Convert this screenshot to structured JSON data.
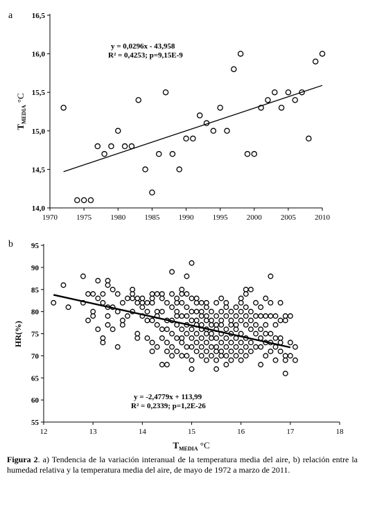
{
  "caption": {
    "label": "Figura 2",
    "text": ". a) Tendencia de la variación interanual de la temperatura media del aire, b) relación entre la humedad relativa y la temperatura media del aire, de mayo de 1972 a marzo de 2011."
  },
  "chart_data": [
    {
      "panel_label": "a",
      "type": "scatter",
      "title": "",
      "xlabel": "",
      "ylabel_main": "T",
      "ylabel_sub": "MEDIA",
      "ylabel_unit": " °C",
      "xlim": [
        1970,
        2010
      ],
      "ylim": [
        14.0,
        16.5
      ],
      "xticks": [
        "1970",
        "1975",
        "1980",
        "1985",
        "1990",
        "1995",
        "2000",
        "2005",
        "2010"
      ],
      "yticks": [
        "14,0",
        "14,5",
        "15,0",
        "15,5",
        "16,0",
        "16,5"
      ],
      "grid": false,
      "equation": "y = 0,0296x - 43,958",
      "r2": "R² = 0,4253; p=9,15E-9",
      "trendline": {
        "x": [
          1972,
          2010
        ],
        "y": [
          14.47,
          15.59
        ]
      },
      "points": [
        [
          1972,
          15.3
        ],
        [
          1974,
          14.1
        ],
        [
          1975,
          14.1
        ],
        [
          1976,
          14.1
        ],
        [
          1977,
          14.8
        ],
        [
          1978,
          14.7
        ],
        [
          1979,
          14.8
        ],
        [
          1980,
          15.0
        ],
        [
          1981,
          14.8
        ],
        [
          1982,
          14.8
        ],
        [
          1983,
          15.4
        ],
        [
          1984,
          14.5
        ],
        [
          1985,
          14.2
        ],
        [
          1986,
          14.7
        ],
        [
          1987,
          15.5
        ],
        [
          1988,
          14.7
        ],
        [
          1989,
          14.5
        ],
        [
          1990,
          14.9
        ],
        [
          1991,
          14.9
        ],
        [
          1992,
          15.2
        ],
        [
          1993,
          15.1
        ],
        [
          1994,
          15.0
        ],
        [
          1995,
          15.3
        ],
        [
          1996,
          15.0
        ],
        [
          1997,
          15.8
        ],
        [
          1998,
          16.0
        ],
        [
          1999,
          14.7
        ],
        [
          2000,
          14.7
        ],
        [
          2001,
          15.3
        ],
        [
          2002,
          15.4
        ],
        [
          2003,
          15.5
        ],
        [
          2004,
          15.3
        ],
        [
          2005,
          15.5
        ],
        [
          2006,
          15.4
        ],
        [
          2007,
          15.5
        ],
        [
          2008,
          14.9
        ],
        [
          2009,
          15.9
        ],
        [
          2010,
          16.0
        ]
      ]
    },
    {
      "panel_label": "b",
      "type": "scatter",
      "title": "",
      "xlabel_main": "T",
      "xlabel_sub": "MEDIA",
      "xlabel_unit": " °C",
      "ylabel": "HR(%)",
      "xlim": [
        12,
        18
      ],
      "ylim": [
        55,
        95
      ],
      "xticks": [
        "12",
        "13",
        "14",
        "15",
        "16",
        "17",
        "18"
      ],
      "yticks": [
        "55",
        "60",
        "65",
        "70",
        "75",
        "80",
        "85",
        "90",
        "95"
      ],
      "grid": false,
      "equation": "y = -2,4779x + 113,99",
      "r2": "R² = 0,2339; p=1,2E-26",
      "trendline": {
        "x": [
          12.2,
          17.0
        ],
        "y": [
          83.8,
          71.9
        ]
      },
      "points": [
        [
          12.2,
          82
        ],
        [
          12.4,
          86
        ],
        [
          12.5,
          81
        ],
        [
          12.8,
          88
        ],
        [
          12.8,
          82
        ],
        [
          12.9,
          84
        ],
        [
          12.9,
          78
        ],
        [
          13.0,
          84
        ],
        [
          13.0,
          80
        ],
        [
          13.0,
          79
        ],
        [
          13.1,
          87
        ],
        [
          13.1,
          83
        ],
        [
          13.1,
          76
        ],
        [
          13.2,
          84
        ],
        [
          13.2,
          82
        ],
        [
          13.2,
          74
        ],
        [
          13.2,
          73
        ],
        [
          13.3,
          87
        ],
        [
          13.3,
          86
        ],
        [
          13.3,
          81
        ],
        [
          13.3,
          79
        ],
        [
          13.3,
          77
        ],
        [
          13.4,
          85
        ],
        [
          13.4,
          81
        ],
        [
          13.4,
          76
        ],
        [
          13.5,
          84
        ],
        [
          13.5,
          80
        ],
        [
          13.5,
          72
        ],
        [
          13.6,
          82
        ],
        [
          13.6,
          78
        ],
        [
          13.6,
          77
        ],
        [
          13.7,
          83
        ],
        [
          13.7,
          79
        ],
        [
          13.8,
          85
        ],
        [
          13.8,
          84
        ],
        [
          13.8,
          83
        ],
        [
          13.8,
          80
        ],
        [
          13.9,
          83
        ],
        [
          13.9,
          82
        ],
        [
          13.9,
          75
        ],
        [
          13.9,
          74
        ],
        [
          14.0,
          83
        ],
        [
          14.0,
          82
        ],
        [
          14.0,
          81
        ],
        [
          14.0,
          79
        ],
        [
          14.1,
          82
        ],
        [
          14.1,
          80
        ],
        [
          14.1,
          78
        ],
        [
          14.1,
          74
        ],
        [
          14.2,
          84
        ],
        [
          14.2,
          83
        ],
        [
          14.2,
          82
        ],
        [
          14.2,
          78
        ],
        [
          14.2,
          73
        ],
        [
          14.2,
          71
        ],
        [
          14.3,
          84
        ],
        [
          14.3,
          80
        ],
        [
          14.3,
          79
        ],
        [
          14.3,
          77
        ],
        [
          14.3,
          72
        ],
        [
          14.4,
          84
        ],
        [
          14.4,
          83
        ],
        [
          14.4,
          80
        ],
        [
          14.4,
          76
        ],
        [
          14.4,
          74
        ],
        [
          14.4,
          68
        ],
        [
          14.5,
          82
        ],
        [
          14.5,
          78
        ],
        [
          14.5,
          76
        ],
        [
          14.5,
          73
        ],
        [
          14.5,
          71
        ],
        [
          14.5,
          68
        ],
        [
          14.6,
          89
        ],
        [
          14.6,
          84
        ],
        [
          14.6,
          81
        ],
        [
          14.6,
          78
        ],
        [
          14.6,
          75
        ],
        [
          14.6,
          72
        ],
        [
          14.6,
          70
        ],
        [
          14.7,
          83
        ],
        [
          14.7,
          82
        ],
        [
          14.7,
          80
        ],
        [
          14.7,
          79
        ],
        [
          14.7,
          77
        ],
        [
          14.7,
          74
        ],
        [
          14.7,
          71
        ],
        [
          14.8,
          85
        ],
        [
          14.8,
          84
        ],
        [
          14.8,
          82
        ],
        [
          14.8,
          79
        ],
        [
          14.8,
          76
        ],
        [
          14.8,
          74
        ],
        [
          14.8,
          73
        ],
        [
          14.8,
          70
        ],
        [
          14.9,
          88
        ],
        [
          14.9,
          84
        ],
        [
          14.9,
          81
        ],
        [
          14.9,
          79
        ],
        [
          14.9,
          77
        ],
        [
          14.9,
          75
        ],
        [
          14.9,
          72
        ],
        [
          14.9,
          70
        ],
        [
          15.0,
          91
        ],
        [
          15.0,
          83
        ],
        [
          15.0,
          80
        ],
        [
          15.0,
          78
        ],
        [
          15.0,
          76
        ],
        [
          15.0,
          74
        ],
        [
          15.0,
          72
        ],
        [
          15.0,
          69
        ],
        [
          15.0,
          67
        ],
        [
          15.1,
          83
        ],
        [
          15.1,
          82
        ],
        [
          15.1,
          80
        ],
        [
          15.1,
          78
        ],
        [
          15.1,
          77
        ],
        [
          15.1,
          75
        ],
        [
          15.1,
          73
        ],
        [
          15.1,
          71
        ],
        [
          15.2,
          82
        ],
        [
          15.2,
          80
        ],
        [
          15.2,
          79
        ],
        [
          15.2,
          77
        ],
        [
          15.2,
          76
        ],
        [
          15.2,
          74
        ],
        [
          15.2,
          72
        ],
        [
          15.2,
          70
        ],
        [
          15.3,
          82
        ],
        [
          15.3,
          81
        ],
        [
          15.3,
          79
        ],
        [
          15.3,
          78
        ],
        [
          15.3,
          76
        ],
        [
          15.3,
          75
        ],
        [
          15.3,
          73
        ],
        [
          15.3,
          71
        ],
        [
          15.3,
          69
        ],
        [
          15.4,
          80
        ],
        [
          15.4,
          78
        ],
        [
          15.4,
          77
        ],
        [
          15.4,
          75
        ],
        [
          15.4,
          74
        ],
        [
          15.4,
          72
        ],
        [
          15.4,
          70
        ],
        [
          15.5,
          82
        ],
        [
          15.5,
          79
        ],
        [
          15.5,
          77
        ],
        [
          15.5,
          76
        ],
        [
          15.5,
          74
        ],
        [
          15.5,
          72
        ],
        [
          15.5,
          71
        ],
        [
          15.5,
          69
        ],
        [
          15.5,
          67
        ],
        [
          15.6,
          83
        ],
        [
          15.6,
          80
        ],
        [
          15.6,
          78
        ],
        [
          15.6,
          77
        ],
        [
          15.6,
          75
        ],
        [
          15.6,
          73
        ],
        [
          15.6,
          71
        ],
        [
          15.6,
          70
        ],
        [
          15.7,
          82
        ],
        [
          15.7,
          81
        ],
        [
          15.7,
          79
        ],
        [
          15.7,
          76
        ],
        [
          15.7,
          74
        ],
        [
          15.7,
          72
        ],
        [
          15.7,
          70
        ],
        [
          15.7,
          68
        ],
        [
          15.8,
          80
        ],
        [
          15.8,
          78
        ],
        [
          15.8,
          77
        ],
        [
          15.8,
          75
        ],
        [
          15.8,
          73
        ],
        [
          15.8,
          71
        ],
        [
          15.8,
          69
        ],
        [
          15.9,
          81
        ],
        [
          15.9,
          79
        ],
        [
          15.9,
          77
        ],
        [
          15.9,
          76
        ],
        [
          15.9,
          74
        ],
        [
          15.9,
          72
        ],
        [
          15.9,
          70
        ],
        [
          16.0,
          83
        ],
        [
          16.0,
          82
        ],
        [
          16.0,
          80
        ],
        [
          16.0,
          78
        ],
        [
          16.0,
          75
        ],
        [
          16.0,
          73
        ],
        [
          16.0,
          71
        ],
        [
          16.0,
          69
        ],
        [
          16.1,
          85
        ],
        [
          16.1,
          84
        ],
        [
          16.1,
          81
        ],
        [
          16.1,
          79
        ],
        [
          16.1,
          77
        ],
        [
          16.1,
          74
        ],
        [
          16.1,
          72
        ],
        [
          16.1,
          70
        ],
        [
          16.2,
          85
        ],
        [
          16.2,
          80
        ],
        [
          16.2,
          78
        ],
        [
          16.2,
          76
        ],
        [
          16.2,
          73
        ],
        [
          16.2,
          71
        ],
        [
          16.3,
          82
        ],
        [
          16.3,
          79
        ],
        [
          16.3,
          77
        ],
        [
          16.3,
          75
        ],
        [
          16.3,
          72
        ],
        [
          16.4,
          81
        ],
        [
          16.4,
          79
        ],
        [
          16.4,
          76
        ],
        [
          16.4,
          74
        ],
        [
          16.4,
          72
        ],
        [
          16.4,
          68
        ],
        [
          16.5,
          83
        ],
        [
          16.5,
          79
        ],
        [
          16.5,
          77
        ],
        [
          16.5,
          75
        ],
        [
          16.5,
          73
        ],
        [
          16.5,
          70
        ],
        [
          16.6,
          88
        ],
        [
          16.6,
          82
        ],
        [
          16.6,
          79
        ],
        [
          16.6,
          75
        ],
        [
          16.6,
          73
        ],
        [
          16.6,
          71
        ],
        [
          16.7,
          79
        ],
        [
          16.7,
          77
        ],
        [
          16.7,
          74
        ],
        [
          16.7,
          72
        ],
        [
          16.8,
          82
        ],
        [
          16.8,
          78
        ],
        [
          16.8,
          74
        ],
        [
          16.8,
          73
        ],
        [
          16.8,
          71
        ],
        [
          16.9,
          79
        ],
        [
          16.9,
          78
        ],
        [
          16.9,
          70
        ],
        [
          16.9,
          69
        ],
        [
          16.9,
          66
        ],
        [
          17.0,
          79
        ],
        [
          17.0,
          73
        ],
        [
          17.0,
          70
        ],
        [
          17.1,
          72
        ],
        [
          17.1,
          69
        ],
        [
          16.7,
          69
        ]
      ]
    }
  ]
}
